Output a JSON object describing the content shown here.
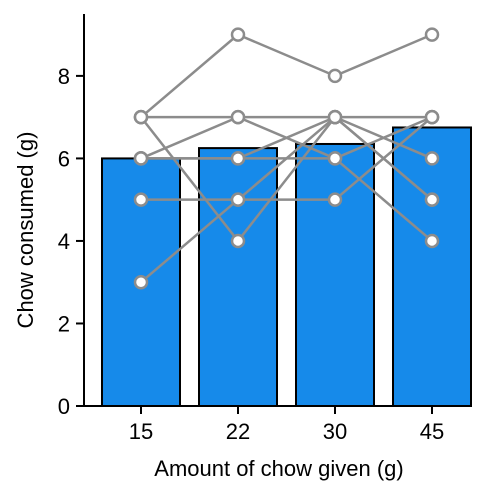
{
  "chart_data": {
    "type": "bar",
    "categories": [
      "15",
      "22",
      "30",
      "45"
    ],
    "values": [
      6.0,
      6.25,
      6.35,
      6.75
    ],
    "xlabel": "Amount of chow given (g)",
    "ylabel": "Chow consumed (g)",
    "ylim": [
      0,
      9.5
    ],
    "yticks": [
      0,
      2,
      4,
      6,
      8
    ],
    "grid": false,
    "subjects": [
      [
        7,
        9,
        8,
        9
      ],
      [
        6,
        7,
        7,
        7
      ],
      [
        7,
        7,
        6,
        4
      ],
      [
        6,
        6,
        7,
        6
      ],
      [
        5,
        5,
        5,
        7
      ],
      [
        3,
        5,
        7,
        5
      ],
      [
        7,
        4,
        7,
        5
      ],
      [
        6,
        6,
        6,
        7
      ]
    ],
    "colors": {
      "bar_fill": "#168aea",
      "bar_edge": "#000000",
      "line": "#8c8c8c",
      "marker_fill": "#ffffff",
      "axis": "#000000"
    }
  }
}
